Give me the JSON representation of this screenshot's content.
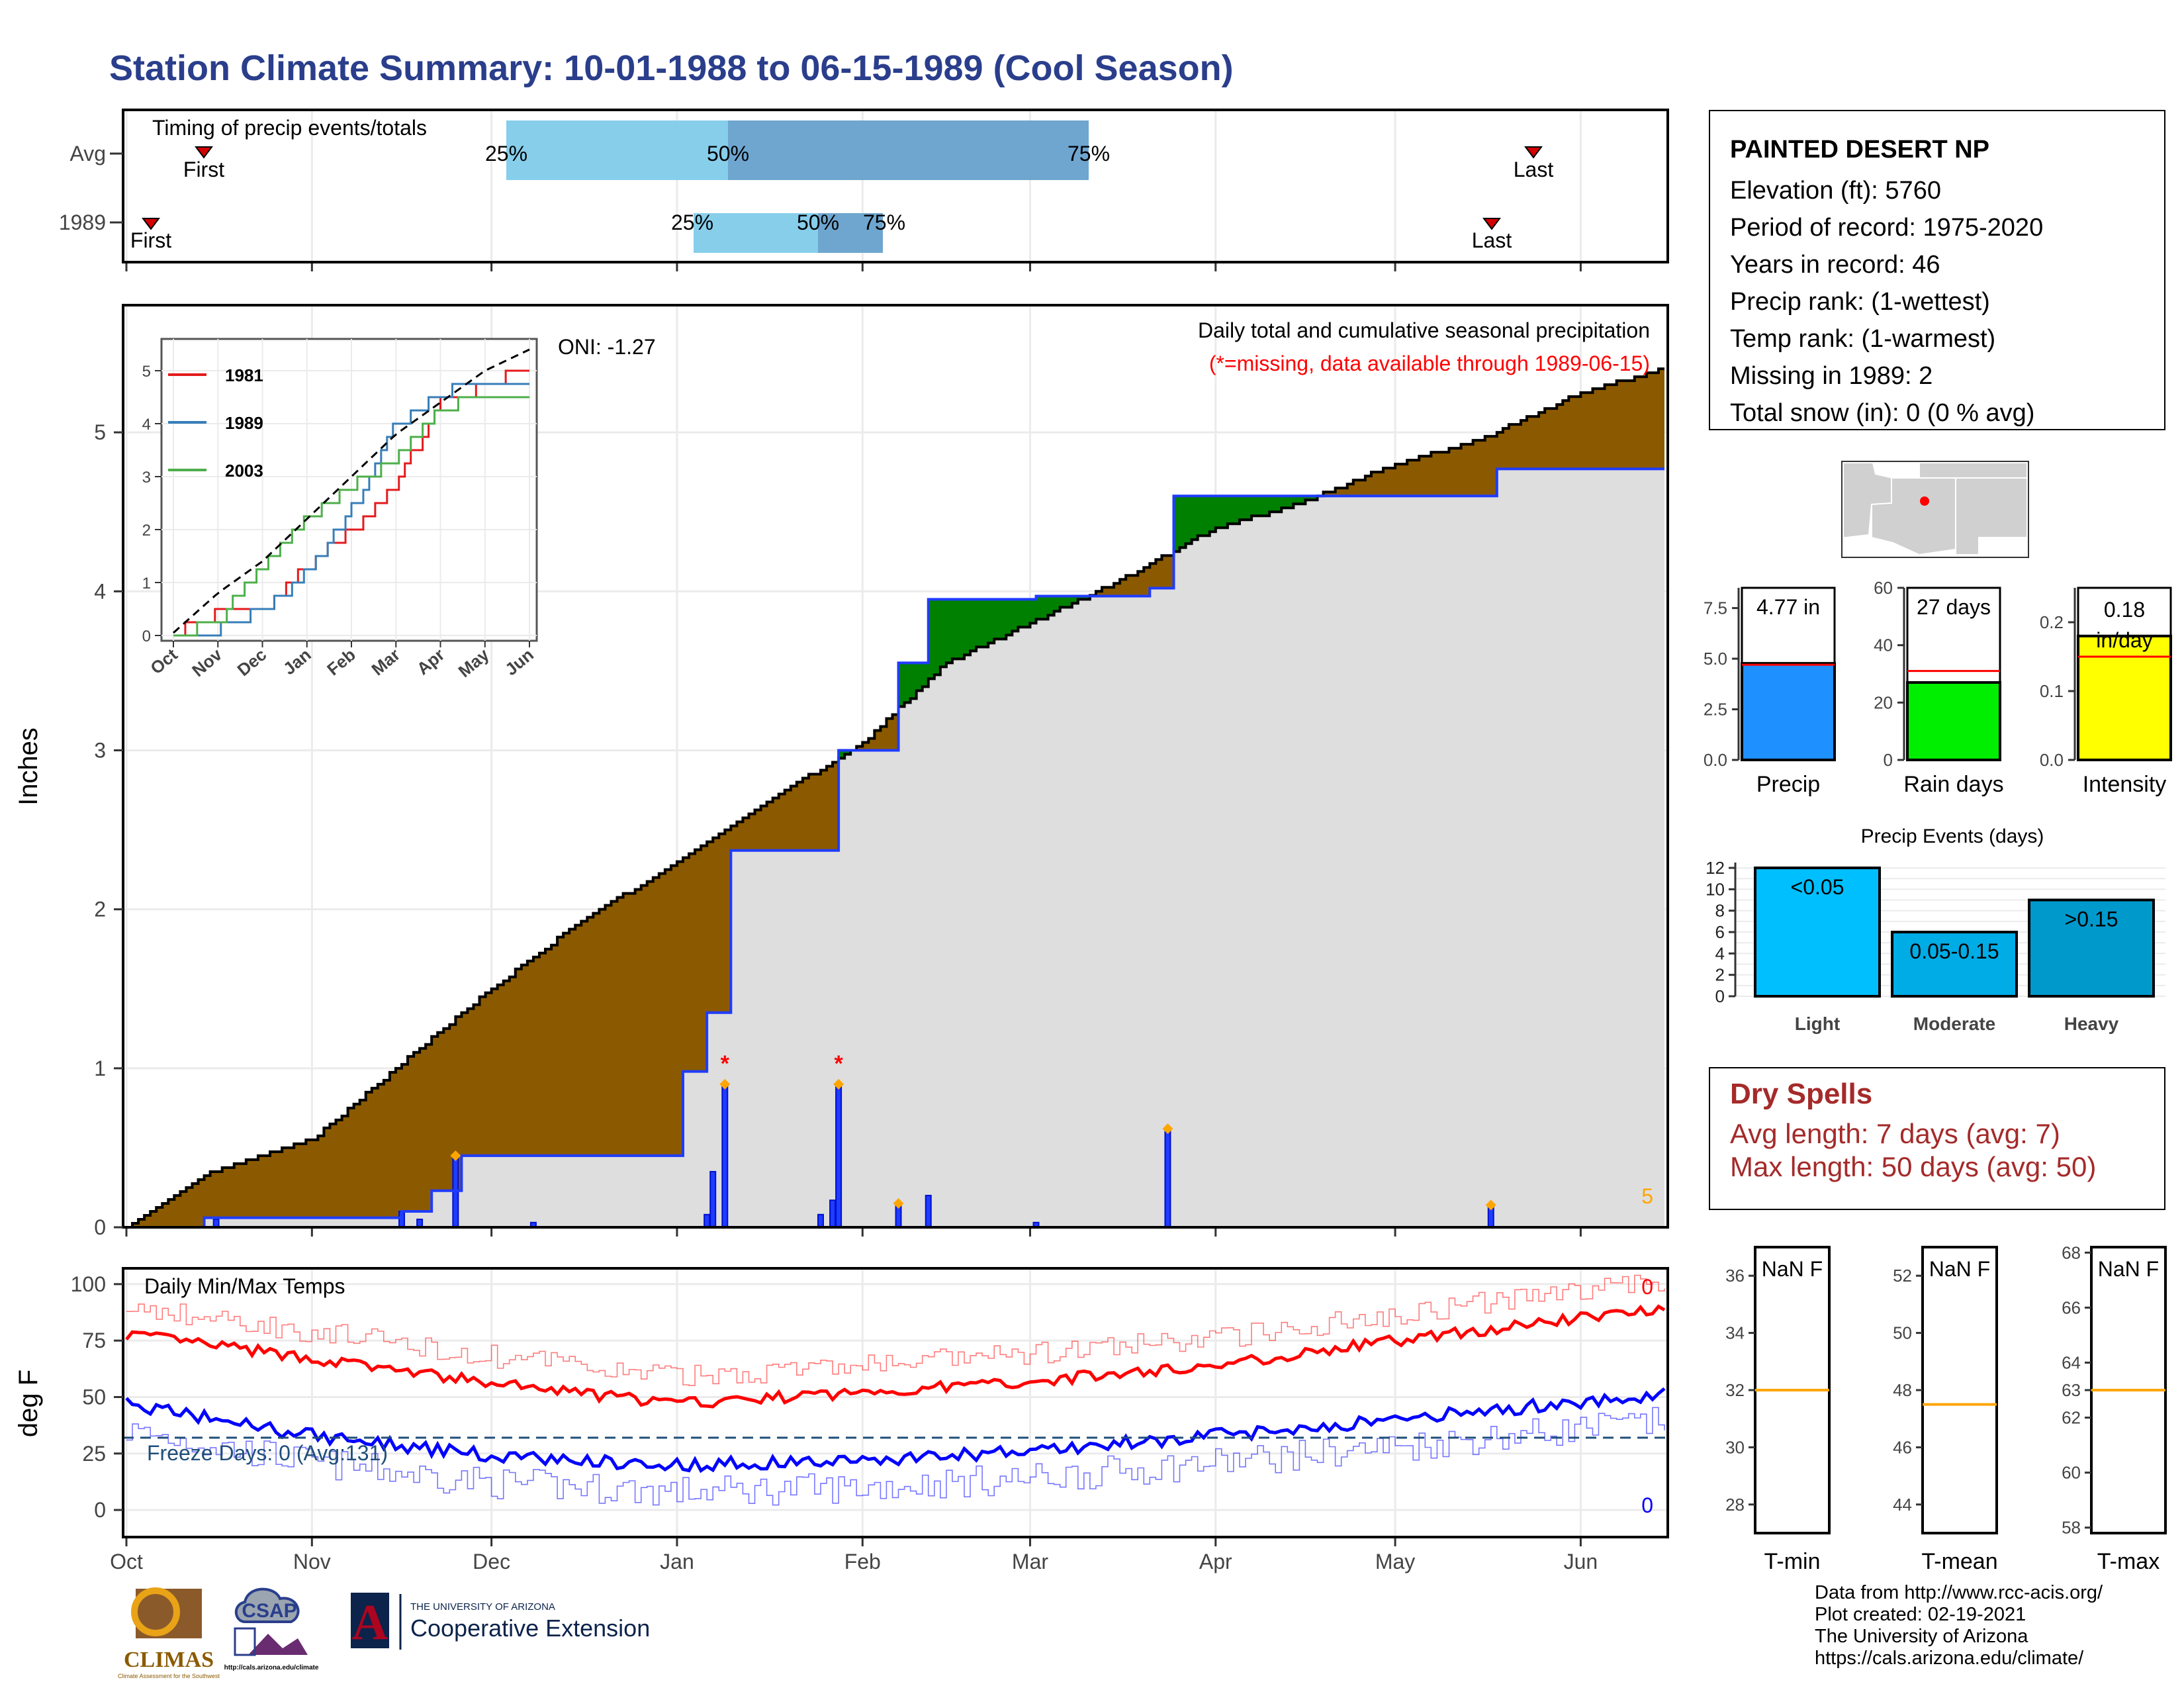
{
  "title": "Station Climate Summary: 10-01-1988 to 06-15-1989 (Cool Season)",
  "station": {
    "name": "PAINTED DESERT NP",
    "lines": [
      "Elevation (ft): 5760",
      "Period of record: 1975-2020",
      "Years in record: 46",
      "Precip rank:  (1-wettest)",
      "Temp rank:  (1-warmest)",
      "Missing in 1989: 2",
      "Total snow (in): 0 (0 % avg)"
    ]
  },
  "timing_panel": {
    "caption": "Timing of precip events/totals",
    "row_labels": [
      "Avg",
      "1989"
    ],
    "first_label": "First",
    "last_label": "Last",
    "pct_labels": [
      "25%",
      "50%",
      "75%"
    ]
  },
  "precip_panel": {
    "ylabel": "Inches",
    "yticks": [
      "0",
      "1",
      "2",
      "3",
      "4",
      "5"
    ],
    "caption1": "Daily total and cumulative seasonal precipitation",
    "caption2": "(*=missing, data available through 1989-06-15)",
    "oni": "ONI: -1.27",
    "corner_value": "5"
  },
  "inset": {
    "legend": [
      "1981",
      "1989",
      "2003"
    ],
    "months": [
      "Oct",
      "Nov",
      "Dec",
      "Jan",
      "Feb",
      "Mar",
      "Apr",
      "May",
      "Jun"
    ],
    "yticks": [
      "0",
      "1",
      "2",
      "3",
      "4",
      "5"
    ]
  },
  "temp_panel": {
    "caption": "Daily Min/Max Temps",
    "ylabel": "deg F",
    "yticks": [
      "0",
      "25",
      "50",
      "75",
      "100"
    ],
    "freeze_text": "Freeze Days: 0 (Avg:131)",
    "max_count": "0",
    "min_count": "0"
  },
  "months": [
    "Oct",
    "Nov",
    "Dec",
    "Jan",
    "Feb",
    "Mar",
    "Apr",
    "May",
    "Jun"
  ],
  "bars_small": [
    {
      "label": "Precip",
      "value_text": "4.77 in",
      "yticks": [
        "0.0",
        "2.5",
        "5.0",
        "7.5"
      ]
    },
    {
      "label": "Rain days",
      "value_text": "27 days",
      "yticks": [
        "0",
        "20",
        "40",
        "60"
      ]
    },
    {
      "label": "Intensity",
      "value_text": "0.18 in/day",
      "yticks": [
        "0.0",
        "0.1",
        "0.2"
      ]
    }
  ],
  "events": {
    "title": "Precip Events (days)",
    "yticks": [
      "0",
      "2",
      "4",
      "6",
      "8",
      "10",
      "12"
    ],
    "categories": [
      "Light",
      "Moderate",
      "Heavy"
    ],
    "bar_labels": [
      "<0.05",
      "0.05-0.15",
      ">0.15"
    ]
  },
  "dry_spells": {
    "title": "Dry Spells",
    "avg": "Avg length: 7 days (avg: 7)",
    "max": "Max length: 50 days (avg: 50)"
  },
  "temp_boxes": [
    {
      "label": "T-min",
      "value": "NaN F",
      "yticks": [
        "28",
        "30",
        "32",
        "34",
        "36"
      ]
    },
    {
      "label": "T-mean",
      "value": "NaN F",
      "yticks": [
        "44",
        "46",
        "48",
        "50",
        "52"
      ]
    },
    {
      "label": "T-max",
      "value": "NaN F",
      "yticks": [
        "58",
        "60",
        "62",
        "63",
        "64",
        "66",
        "68"
      ]
    }
  ],
  "credits": [
    "Data from http://www.rcc-acis.org/",
    "Plot created: 02-19-2021",
    "The University of Arizona",
    "https://cals.arizona.edu/climate/"
  ],
  "logos": {
    "climas": "CLIMAS",
    "climas_sub": "Climate Assessment for the Southwest",
    "csap": "CSAP",
    "csap_url": "http://cals.arizona.edu/climate",
    "ua_small": "THE UNIVERSITY OF ARIZONA",
    "ua_big": "Cooperative Extension",
    "ua_letter": "A"
  },
  "colors": {
    "title": "#2a3e8c",
    "above_avg": "#008000",
    "below_avg": "#8b5a00",
    "area": "#dedede",
    "daily": "#1f3cff",
    "missing": "#ff0000",
    "marker": "#ffa500",
    "tmax": "#ff0000",
    "tmin": "#0000ff",
    "freeze": "#1f4e79"
  },
  "chart_data": [
    {
      "type": "line",
      "title": "Daily total and cumulative seasonal precipitation",
      "ylabel": "Inches",
      "ylim": [
        0,
        5.8
      ],
      "x_range": [
        "1988-10-01",
        "1989-06-15"
      ],
      "series": [
        {
          "x": [
            "1988-10-01",
            "1988-10-15",
            "1988-11-01",
            "1988-11-15",
            "1988-12-01",
            "1988-12-15",
            "1989-01-01",
            "1989-01-15",
            "1989-02-01",
            "1989-02-15",
            "1989-03-01",
            "1989-03-15",
            "1989-04-01",
            "1989-04-15",
            "1989-05-01",
            "1989-05-15",
            "1989-06-01",
            "1989-06-15"
          ],
          "y": [
            0.0,
            0.35,
            0.55,
            1.0,
            1.5,
            1.9,
            2.3,
            2.65,
            3.05,
            3.55,
            3.8,
            4.05,
            4.4,
            4.55,
            4.8,
            4.95,
            5.25,
            5.4
          ]
        },
        {
          "name": "1989",
          "x": [
            "1988-10-01",
            "1988-10-14",
            "1988-11-01",
            "1988-11-16",
            "1988-11-21",
            "1988-11-26",
            "1989-01-02",
            "1989-01-06",
            "1989-01-10",
            "1989-01-18",
            "1989-01-26",
            "1989-01-28",
            "1989-02-07",
            "1989-02-12",
            "1989-03-02",
            "1989-03-21",
            "1989-03-25",
            "1989-05-18",
            "1989-06-15"
          ],
          "y": [
            0.0,
            0.06,
            0.06,
            0.1,
            0.23,
            0.45,
            0.98,
            1.35,
            2.37,
            2.37,
            2.37,
            3.0,
            3.55,
            3.95,
            3.97,
            4.02,
            4.6,
            4.77,
            4.77
          ]
        }
      ],
      "daily_bars": {
        "x": [
          "1988-11-25",
          "1989-01-09",
          "1989-01-28",
          "1989-02-07",
          "1989-03-24",
          "1989-05-17"
        ],
        "y": [
          0.45,
          0.9,
          0.9,
          0.15,
          0.62,
          0.14
        ]
      },
      "missing_days": [
        "1989-01-09",
        "1989-01-28"
      ]
    },
    {
      "type": "line",
      "title": "Daily Min/Max Temps",
      "ylabel": "deg F",
      "ylim": [
        -10,
        105
      ],
      "series": [
        {
          "name": "Avg max",
          "x": [
            "Oct 1",
            "Nov 1",
            "Dec 1",
            "Jan 1",
            "Feb 1",
            "Mar 1",
            "Apr 1",
            "May 1",
            "Jun 1",
            "Jun 15"
          ],
          "y": [
            78,
            67,
            56,
            47,
            52,
            57,
            64,
            75,
            85,
            90
          ]
        },
        {
          "name": "Avg min",
          "x": [
            "Oct 1",
            "Nov 1",
            "Dec 1",
            "Jan 1",
            "Feb 1",
            "Mar 1",
            "Apr 1",
            "May 1",
            "Jun 1",
            "Jun 15"
          ],
          "y": [
            47,
            33,
            24,
            20,
            22,
            26,
            33,
            40,
            48,
            51
          ]
        }
      ],
      "freeze_line": 32
    },
    {
      "type": "line",
      "title": "",
      "x": [
        "Oct",
        "Nov",
        "Dec",
        "Jan",
        "Feb",
        "Mar",
        "Apr",
        "May",
        "Jun"
      ],
      "ylim": [
        0,
        5.4
      ],
      "series": [
        {
          "name": "1981",
          "y": [
            0.05,
            0.45,
            0.5,
            1.3,
            2.0,
            2.9,
            4.4,
            4.7,
            5.1
          ]
        },
        {
          "name": "1989",
          "y": [
            0.0,
            0.1,
            0.5,
            1.2,
            2.4,
            4.0,
            4.6,
            4.7,
            4.77
          ]
        },
        {
          "name": "2003",
          "y": [
            0.0,
            0.3,
            1.3,
            2.2,
            2.8,
            3.4,
            4.3,
            4.5,
            4.6
          ]
        },
        {
          "y": [
            0.05,
            0.8,
            1.4,
            2.2,
            3.0,
            3.8,
            4.4,
            5.0,
            5.4
          ]
        }
      ]
    },
    {
      "type": "bar",
      "categories": [
        "Precip"
      ],
      "values": [
        4.77
      ],
      "ylim": [
        0,
        8.5
      ],
      "reference": 4.7
    },
    {
      "type": "bar",
      "categories": [
        "Rain days"
      ],
      "values": [
        27
      ],
      "ylim": [
        0,
        60
      ],
      "reference": 31
    },
    {
      "type": "bar",
      "categories": [
        "Intensity"
      ],
      "values": [
        0.18
      ],
      "ylim": [
        0,
        0.25
      ],
      "reference": 0.15
    },
    {
      "type": "bar",
      "title": "Precip Events (days)",
      "categories": [
        "Light",
        "Moderate",
        "Heavy"
      ],
      "values": [
        12,
        6,
        9
      ],
      "ylim": [
        0,
        12.5
      ]
    },
    {
      "type": "bar",
      "categories": [
        "T-min",
        "T-mean",
        "T-max"
      ],
      "values": [
        32,
        47.5,
        63
      ]
    }
  ]
}
